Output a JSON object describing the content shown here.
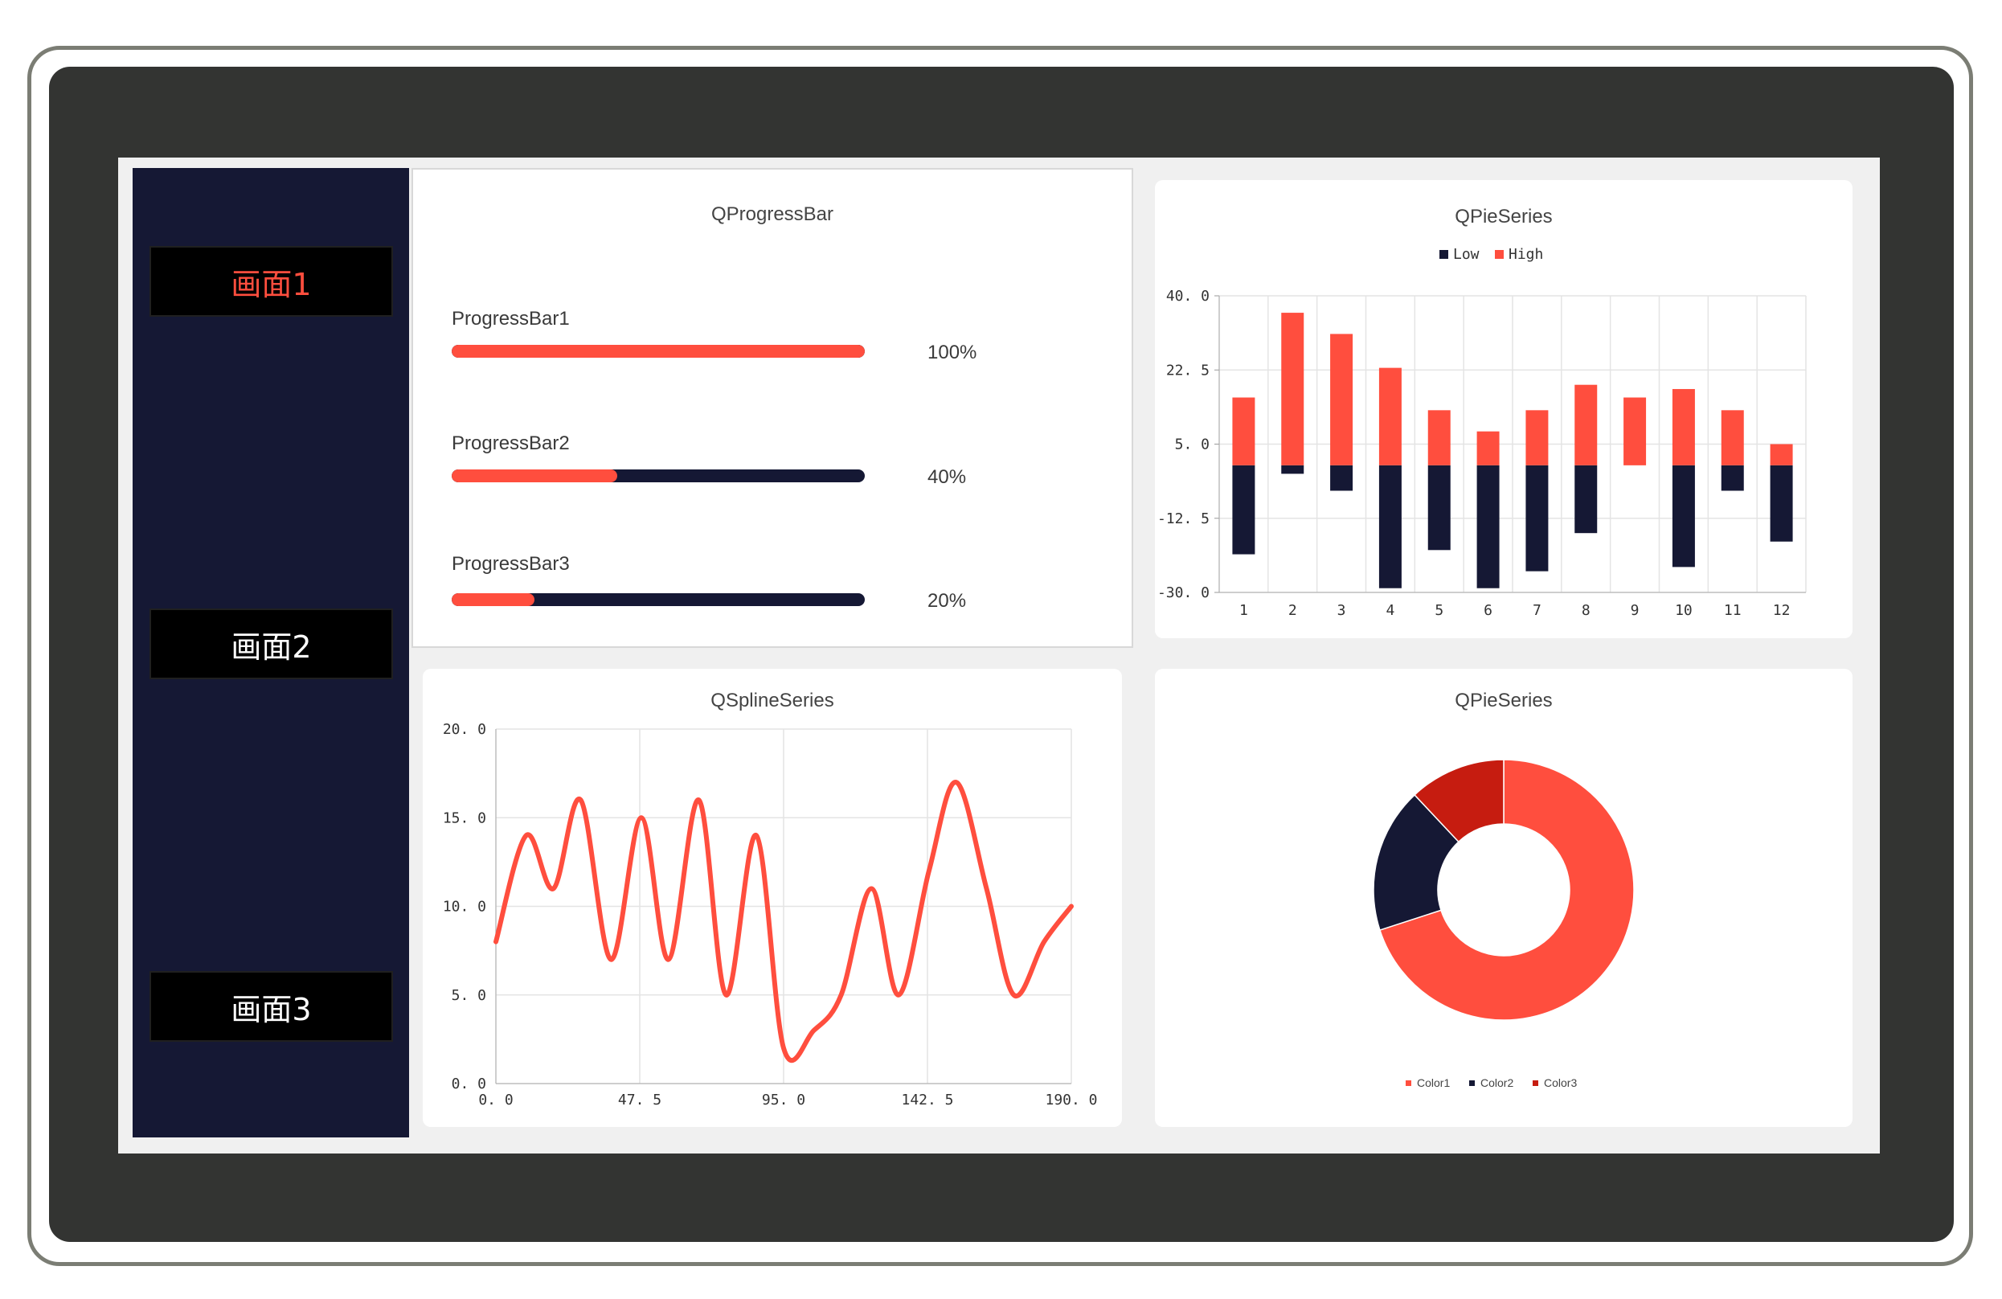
{
  "colors": {
    "accent": "#ff4e3e",
    "dark": "#151834",
    "dark_red": "#c61c10"
  },
  "sidebar": {
    "items": [
      {
        "label": "画面1",
        "active": true
      },
      {
        "label": "画面2",
        "active": false
      },
      {
        "label": "画面3",
        "active": false
      }
    ]
  },
  "progress_panel": {
    "title": "QProgressBar",
    "bars": [
      {
        "label": "ProgressBar1",
        "value": 100,
        "text": "100%"
      },
      {
        "label": "ProgressBar2",
        "value": 40,
        "text": "40%"
      },
      {
        "label": "ProgressBar3",
        "value": 20,
        "text": "20%"
      }
    ]
  },
  "chart_data": [
    {
      "type": "bar",
      "title": "QPieSeries",
      "categories": [
        "1",
        "2",
        "3",
        "4",
        "5",
        "6",
        "7",
        "8",
        "9",
        "10",
        "11",
        "12"
      ],
      "series": [
        {
          "name": "Low",
          "color": "#151834",
          "values": [
            -21,
            -2,
            -6,
            -29,
            -20,
            -29,
            -25,
            -16,
            0,
            -24,
            -6,
            -18
          ]
        },
        {
          "name": "High",
          "color": "#ff4e3e",
          "values": [
            16,
            36,
            31,
            23,
            13,
            8,
            13,
            19,
            16,
            18,
            13,
            5
          ]
        }
      ],
      "ylim": [
        -30,
        40
      ],
      "yticks": [
        "40. 0",
        "22. 5",
        "5. 0",
        "-12. 5",
        "-30. 0"
      ],
      "stacked": true,
      "grid": true,
      "legend": "top"
    },
    {
      "type": "line",
      "title": "QSplineSeries",
      "x": [
        0,
        10,
        19,
        28,
        38,
        48,
        57,
        67,
        76,
        86,
        95,
        105,
        114,
        124,
        133,
        143,
        152,
        162,
        171,
        181,
        190
      ],
      "values": [
        8,
        14,
        11,
        16,
        7,
        15,
        7,
        16,
        5,
        14,
        2,
        3,
        5,
        11,
        5,
        12,
        17,
        11,
        5,
        8,
        10
      ],
      "xlim": [
        0,
        190
      ],
      "ylim": [
        0,
        20
      ],
      "xticks": [
        "0. 0",
        "47. 5",
        "95. 0",
        "142. 5",
        "190. 0"
      ],
      "yticks": [
        "20. 0",
        "15. 0",
        "10. 0",
        "5. 0",
        "0. 0"
      ],
      "grid": true
    },
    {
      "type": "pie",
      "title": "QPieSeries",
      "series": [
        {
          "name": "Color1",
          "value": 70,
          "color": "#ff4e3e"
        },
        {
          "name": "Color2",
          "value": 18,
          "color": "#151834"
        },
        {
          "name": "Color3",
          "value": 12,
          "color": "#c61c10"
        }
      ],
      "donut": true,
      "legend": "bottom"
    }
  ]
}
